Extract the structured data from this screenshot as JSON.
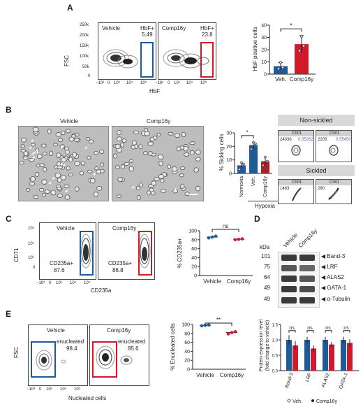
{
  "panel_labels": {
    "A": "A",
    "B": "B",
    "C": "C",
    "D": "D",
    "E": "E"
  },
  "panelA": {
    "y_axis": "FSC",
    "x_axis": "HbF",
    "y_ticks": [
      "250k",
      "200k",
      "150k",
      "100k",
      "50k",
      "0"
    ],
    "x_ticks": [
      "−10³",
      "0",
      "10³",
      "10⁴",
      "10⁵"
    ],
    "plot1": {
      "title": "Vehicle",
      "gate_label": "HbF+",
      "gate_value": "5.49"
    },
    "plot2": {
      "title": "Comp16y",
      "gate_label": "HbF+",
      "gate_value": "23.8"
    }
  },
  "panelB": {
    "micro1_title": "Vehicle",
    "micro2_title": "Comp16y",
    "non_sickled_title": "Non-sickled",
    "sickled_title": "Sickled",
    "cell_tiles": [
      {
        "ch": "Ch01",
        "id": "24036",
        "value": "0.55262"
      },
      {
        "ch": "Ch01",
        "id": "2205",
        "value": "0.55450"
      },
      {
        "ch": "Ch01",
        "id": "1483",
        "value": ""
      },
      {
        "ch": "Ch01",
        "id": "280",
        "value": ""
      }
    ],
    "hypoxia_label": "Hypoxia"
  },
  "panelC": {
    "y_axis": "CD71",
    "x_axis": "CD235a",
    "y_ticks": [
      "10⁵",
      "10⁴",
      "10³",
      "0"
    ],
    "x_ticks": [
      "−10³",
      "0",
      "10³",
      "10⁴",
      "10⁵"
    ],
    "plot1": {
      "title": "Vehicle",
      "gate_label": "CD235a+",
      "gate_value": "87.6"
    },
    "plot2": {
      "title": "Comp16y",
      "gate_label": "CD235a+",
      "gate_value": "86.8"
    }
  },
  "panelD": {
    "kda_label": "kDa",
    "lane_labels": [
      "Vehicle",
      "Comp16y"
    ],
    "rows": [
      {
        "kda": "101",
        "name": "Band-3"
      },
      {
        "kda": "75",
        "name": "LRF"
      },
      {
        "kda": "64",
        "name": "ALAS2"
      },
      {
        "kda": "49",
        "name": "GATA-1"
      },
      {
        "kda": "49",
        "name": "α-Tubulin"
      }
    ]
  },
  "panelE": {
    "y_axis": "FSC",
    "x_axis": "Nucleated cells",
    "x_ticks": [
      "−10³",
      "0",
      "10³",
      "10⁴",
      "10⁵"
    ],
    "plot1": {
      "title": "Vehicle",
      "gate_label": "enucleated",
      "gate_value": "98.4"
    },
    "plot2": {
      "title": "Comp16y",
      "gate_label": "enucleated",
      "gate_value": "85.6"
    }
  },
  "chart_data": [
    {
      "id": "A-bar",
      "type": "bar",
      "categories": [
        "Veh.",
        "Comp16y"
      ],
      "values": [
        6.5,
        24.5
      ],
      "errors": [
        3.0,
        7.0
      ],
      "points": [
        [
          4.5,
          9.5,
          5.5
        ],
        [
          19,
          31,
          23
        ]
      ],
      "colors": [
        "#1f5b99",
        "#d1192c"
      ],
      "ylabel": "HbF positive cells",
      "ylim": [
        0,
        40
      ],
      "yticks": [
        "0",
        "10",
        "20",
        "30",
        "40"
      ],
      "significance": "*"
    },
    {
      "id": "B-bar",
      "type": "bar",
      "categories": [
        "Normoxia",
        "Veh.",
        "Comp16y"
      ],
      "values": [
        6,
        21,
        9
      ],
      "errors": [
        2,
        3,
        3
      ],
      "points": [
        [
          3,
          8,
          7
        ],
        [
          18,
          23,
          22
        ],
        [
          6,
          12,
          9
        ]
      ],
      "colors": [
        "#1f5b99",
        "#1f5b99",
        "#a8202a"
      ],
      "ylabel": "% Sicking cells",
      "ylim": [
        0,
        30
      ],
      "yticks": [
        "0",
        "10",
        "20",
        "30"
      ],
      "significance": "*"
    },
    {
      "id": "C-dot",
      "type": "scatter",
      "categories": [
        "Vehicle",
        "Comp16y"
      ],
      "values": [
        86,
        81
      ],
      "points": [
        [
          84,
          86,
          88
        ],
        [
          80,
          81,
          82
        ]
      ],
      "colors": [
        "#1f5b99",
        "#d1192c"
      ],
      "ylabel": "% CD235a+",
      "ylim": [
        0,
        100
      ],
      "yticks": [
        "0",
        "20",
        "40",
        "60",
        "80",
        "100"
      ],
      "significance": "ns"
    },
    {
      "id": "D-bar",
      "type": "bar",
      "categories": [
        "Band-3",
        "LRF",
        "ALAS2",
        "GATA-1"
      ],
      "series": [
        {
          "name": "Veh.",
          "values": [
            1.0,
            1.0,
            1.0,
            1.0
          ],
          "errors": [
            0.15,
            0.1,
            0.1,
            0.1
          ]
        },
        {
          "name": "Comp16y",
          "values": [
            0.82,
            0.72,
            0.85,
            0.9
          ],
          "errors": [
            0.15,
            0.1,
            0.08,
            0.12
          ]
        }
      ],
      "colors": [
        "#1f5b99",
        "#d1192c"
      ],
      "ylabel": "Protein expression level\n(fold change to vehicle)",
      "ylim": [
        0,
        1.5
      ],
      "yticks": [
        "0.0",
        "0.5",
        "1.0",
        "1.5"
      ],
      "significance": "ns",
      "legend": [
        "Veh.",
        "Comp16y"
      ]
    },
    {
      "id": "E-dot",
      "type": "scatter",
      "categories": [
        "Vehicle",
        "Comp16y"
      ],
      "values": [
        98,
        82
      ],
      "points": [
        [
          97,
          98,
          99
        ],
        [
          79,
          82,
          84
        ]
      ],
      "colors": [
        "#1f5b99",
        "#d1192c"
      ],
      "ylabel": "% Enucleated cells",
      "ylim": [
        0,
        100
      ],
      "yticks": [
        "0",
        "20",
        "40",
        "60",
        "80",
        "100"
      ],
      "significance": "**"
    }
  ]
}
